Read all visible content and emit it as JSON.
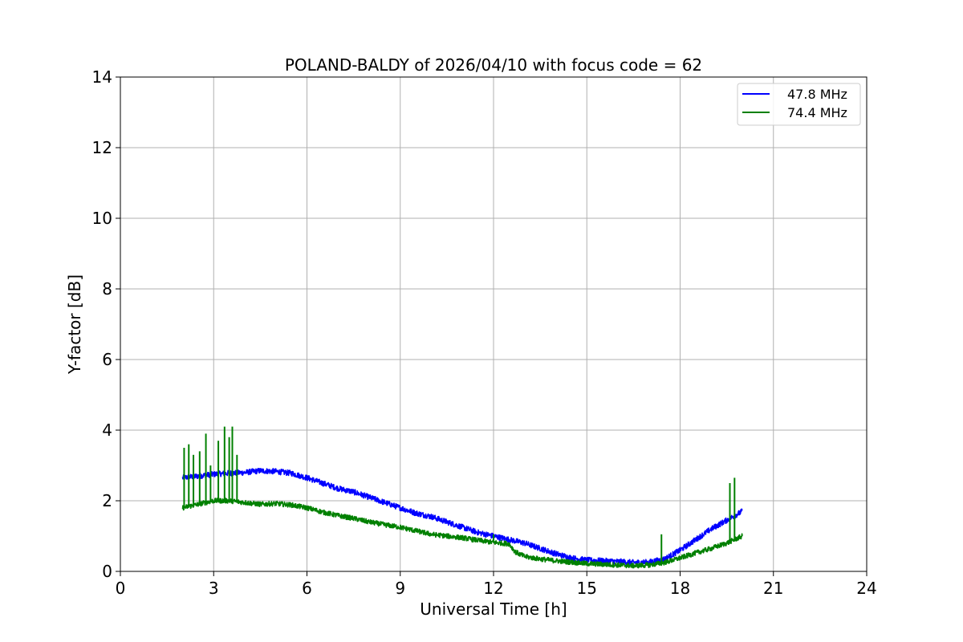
{
  "chart_data": {
    "type": "line",
    "title": "POLAND-BALDY of 2026/04/10 with focus code = 62",
    "xlabel": "Universal Time [h]",
    "ylabel": "Y-factor [dB]",
    "xlim": [
      0,
      24
    ],
    "ylim": [
      0,
      14
    ],
    "xticks": [
      0,
      3,
      6,
      9,
      12,
      15,
      18,
      21,
      24
    ],
    "yticks": [
      0,
      2,
      4,
      6,
      8,
      10,
      12,
      14
    ],
    "xtick_labels": [
      "0",
      "3",
      "6",
      "9",
      "12",
      "15",
      "18",
      "21",
      "24"
    ],
    "ytick_labels": [
      "0",
      "2",
      "4",
      "6",
      "8",
      "10",
      "12",
      "14"
    ],
    "grid": true,
    "legend_position": "top-right",
    "series": [
      {
        "name": "47.8 MHz",
        "legend_label": "47.8 MHz",
        "color": "#0000ff",
        "noise": 0.08,
        "x": [
          2.0,
          2.5,
          3.0,
          3.5,
          4.0,
          4.5,
          5.0,
          5.5,
          6.0,
          6.5,
          7.0,
          7.5,
          8.0,
          8.5,
          9.0,
          9.5,
          10.0,
          10.5,
          11.0,
          11.5,
          12.0,
          12.5,
          13.0,
          13.5,
          14.0,
          14.5,
          15.0,
          15.5,
          16.0,
          16.5,
          17.0,
          17.5,
          18.0,
          18.5,
          19.0,
          19.5,
          20.0
        ],
        "y": [
          2.65,
          2.7,
          2.75,
          2.78,
          2.8,
          2.85,
          2.83,
          2.78,
          2.65,
          2.5,
          2.35,
          2.25,
          2.1,
          1.95,
          1.8,
          1.65,
          1.55,
          1.4,
          1.25,
          1.1,
          1.0,
          0.9,
          0.8,
          0.65,
          0.5,
          0.38,
          0.32,
          0.3,
          0.28,
          0.25,
          0.26,
          0.35,
          0.6,
          0.9,
          1.2,
          1.45,
          1.7
        ]
      },
      {
        "name": "74.4 MHz",
        "legend_label": "74.4 MHz",
        "color": "#008000",
        "noise": 0.07,
        "x": [
          2.0,
          2.5,
          3.0,
          3.5,
          4.0,
          4.5,
          5.0,
          5.5,
          6.0,
          6.5,
          7.0,
          7.5,
          8.0,
          8.5,
          9.0,
          9.5,
          10.0,
          10.5,
          11.0,
          11.5,
          12.0,
          12.5,
          12.7,
          13.0,
          13.5,
          14.0,
          14.5,
          15.0,
          15.5,
          16.0,
          16.5,
          17.0,
          17.5,
          18.0,
          18.5,
          19.0,
          19.5,
          20.0
        ],
        "y": [
          1.8,
          1.9,
          2.0,
          2.0,
          1.95,
          1.9,
          1.92,
          1.88,
          1.8,
          1.68,
          1.58,
          1.5,
          1.4,
          1.32,
          1.25,
          1.15,
          1.05,
          1.0,
          0.95,
          0.88,
          0.82,
          0.78,
          0.55,
          0.42,
          0.35,
          0.3,
          0.26,
          0.22,
          0.2,
          0.18,
          0.16,
          0.18,
          0.25,
          0.38,
          0.52,
          0.65,
          0.8,
          1.0
        ],
        "spikes": [
          {
            "x": 2.05,
            "y": 3.5
          },
          {
            "x": 2.2,
            "y": 3.6
          },
          {
            "x": 2.35,
            "y": 3.3
          },
          {
            "x": 2.55,
            "y": 3.4
          },
          {
            "x": 2.75,
            "y": 3.9
          },
          {
            "x": 2.9,
            "y": 3.0
          },
          {
            "x": 3.15,
            "y": 3.7
          },
          {
            "x": 3.35,
            "y": 4.1
          },
          {
            "x": 3.5,
            "y": 3.8
          },
          {
            "x": 3.6,
            "y": 4.1
          },
          {
            "x": 3.75,
            "y": 3.3
          },
          {
            "x": 12.0,
            "y": 1.05
          },
          {
            "x": 17.4,
            "y": 1.05
          },
          {
            "x": 19.6,
            "y": 2.5
          },
          {
            "x": 19.75,
            "y": 2.65
          }
        ]
      }
    ]
  }
}
